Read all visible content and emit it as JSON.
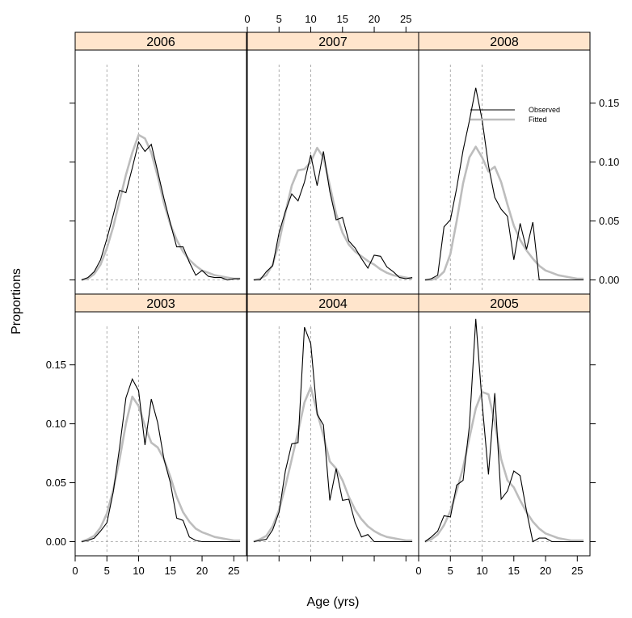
{
  "chart_data": {
    "type": "line",
    "xlabel": "Age (yrs)",
    "ylabel": "Proportions",
    "xlim": [
      0,
      27
    ],
    "ylim": [
      -0.012,
      0.195
    ],
    "x_ticks": [
      0,
      5,
      10,
      15,
      20,
      25
    ],
    "x_tick_labels": [
      "0",
      "5",
      "10",
      "15",
      "20",
      "25"
    ],
    "y_ticks": [
      0.0,
      0.05,
      0.1,
      0.15
    ],
    "y_tick_labels": [
      "0.00",
      "0.05",
      "0.10",
      "0.15"
    ],
    "reference_lines_x": [
      5,
      10
    ],
    "colors": {
      "strip_fill": "#ffe5cc",
      "observed": "#000000",
      "fitted": "#bdbdbd",
      "reference": "#999999"
    },
    "legend": {
      "placement": "top-right of 2008 panel",
      "entries": [
        {
          "label": "Observed",
          "series": "observed"
        },
        {
          "label": "Fitted",
          "series": "fitted"
        }
      ]
    },
    "panels": [
      {
        "year": "2006",
        "observed": [
          [
            1,
            0.0
          ],
          [
            2,
            0.002
          ],
          [
            3,
            0.007
          ],
          [
            4,
            0.017
          ],
          [
            5,
            0.035
          ],
          [
            6,
            0.055
          ],
          [
            7,
            0.076
          ],
          [
            8,
            0.074
          ],
          [
            9,
            0.095
          ],
          [
            10,
            0.117
          ],
          [
            11,
            0.109
          ],
          [
            12,
            0.115
          ],
          [
            13,
            0.092
          ],
          [
            14,
            0.069
          ],
          [
            15,
            0.048
          ],
          [
            16,
            0.028
          ],
          [
            17,
            0.028
          ],
          [
            18,
            0.015
          ],
          [
            19,
            0.004
          ],
          [
            20,
            0.008
          ],
          [
            21,
            0.003
          ],
          [
            22,
            0.002
          ],
          [
            23,
            0.002
          ],
          [
            24,
            0.0
          ],
          [
            25,
            0.001
          ],
          [
            26,
            0.001
          ]
        ],
        "fitted": [
          [
            1,
            0.0
          ],
          [
            2,
            0.001
          ],
          [
            3,
            0.005
          ],
          [
            4,
            0.013
          ],
          [
            5,
            0.027
          ],
          [
            6,
            0.045
          ],
          [
            7,
            0.067
          ],
          [
            8,
            0.089
          ],
          [
            9,
            0.108
          ],
          [
            10,
            0.123
          ],
          [
            11,
            0.12
          ],
          [
            12,
            0.108
          ],
          [
            13,
            0.088
          ],
          [
            14,
            0.065
          ],
          [
            15,
            0.047
          ],
          [
            16,
            0.034
          ],
          [
            17,
            0.024
          ],
          [
            18,
            0.017
          ],
          [
            19,
            0.012
          ],
          [
            20,
            0.008
          ],
          [
            21,
            0.006
          ],
          [
            22,
            0.004
          ],
          [
            23,
            0.003
          ],
          [
            24,
            0.002
          ],
          [
            25,
            0.001
          ],
          [
            26,
            0.001
          ]
        ]
      },
      {
        "year": "2007",
        "observed": [
          [
            1,
            0.0
          ],
          [
            2,
            0.0
          ],
          [
            3,
            0.007
          ],
          [
            4,
            0.012
          ],
          [
            5,
            0.04
          ],
          [
            6,
            0.058
          ],
          [
            7,
            0.073
          ],
          [
            8,
            0.067
          ],
          [
            9,
            0.083
          ],
          [
            10,
            0.106
          ],
          [
            11,
            0.08
          ],
          [
            12,
            0.109
          ],
          [
            13,
            0.075
          ],
          [
            14,
            0.051
          ],
          [
            15,
            0.053
          ],
          [
            16,
            0.033
          ],
          [
            17,
            0.027
          ],
          [
            18,
            0.018
          ],
          [
            19,
            0.01
          ],
          [
            20,
            0.021
          ],
          [
            21,
            0.02
          ],
          [
            22,
            0.011
          ],
          [
            23,
            0.007
          ],
          [
            24,
            0.002
          ],
          [
            25,
            0.001
          ],
          [
            26,
            0.002
          ]
        ],
        "fitted": [
          [
            1,
            0.0
          ],
          [
            2,
            0.001
          ],
          [
            3,
            0.004
          ],
          [
            4,
            0.013
          ],
          [
            5,
            0.032
          ],
          [
            6,
            0.057
          ],
          [
            7,
            0.08
          ],
          [
            8,
            0.093
          ],
          [
            9,
            0.094
          ],
          [
            10,
            0.1
          ],
          [
            11,
            0.112
          ],
          [
            12,
            0.104
          ],
          [
            13,
            0.08
          ],
          [
            14,
            0.056
          ],
          [
            15,
            0.04
          ],
          [
            16,
            0.03
          ],
          [
            17,
            0.024
          ],
          [
            18,
            0.02
          ],
          [
            19,
            0.016
          ],
          [
            20,
            0.013
          ],
          [
            21,
            0.009
          ],
          [
            22,
            0.006
          ],
          [
            23,
            0.004
          ],
          [
            24,
            0.003
          ],
          [
            25,
            0.002
          ],
          [
            26,
            0.001
          ]
        ]
      },
      {
        "year": "2008",
        "observed": [
          [
            1,
            0.0
          ],
          [
            2,
            0.001
          ],
          [
            3,
            0.004
          ],
          [
            4,
            0.045
          ],
          [
            5,
            0.051
          ],
          [
            6,
            0.078
          ],
          [
            7,
            0.11
          ],
          [
            8,
            0.135
          ],
          [
            9,
            0.163
          ],
          [
            10,
            0.136
          ],
          [
            11,
            0.097
          ],
          [
            12,
            0.07
          ],
          [
            13,
            0.06
          ],
          [
            14,
            0.054
          ],
          [
            15,
            0.017
          ],
          [
            16,
            0.048
          ],
          [
            17,
            0.026
          ],
          [
            18,
            0.049
          ],
          [
            19,
            0.0
          ],
          [
            20,
            0.0
          ],
          [
            21,
            0.0
          ],
          [
            22,
            0.0
          ],
          [
            23,
            0.0
          ],
          [
            24,
            0.0
          ],
          [
            25,
            0.0
          ],
          [
            26,
            0.0
          ]
        ],
        "fitted": [
          [
            1,
            0.0
          ],
          [
            2,
            0.0
          ],
          [
            3,
            0.002
          ],
          [
            4,
            0.007
          ],
          [
            5,
            0.022
          ],
          [
            6,
            0.05
          ],
          [
            7,
            0.082
          ],
          [
            8,
            0.104
          ],
          [
            9,
            0.113
          ],
          [
            10,
            0.104
          ],
          [
            11,
            0.092
          ],
          [
            12,
            0.096
          ],
          [
            13,
            0.083
          ],
          [
            14,
            0.064
          ],
          [
            15,
            0.046
          ],
          [
            16,
            0.034
          ],
          [
            17,
            0.025
          ],
          [
            18,
            0.018
          ],
          [
            19,
            0.012
          ],
          [
            20,
            0.008
          ],
          [
            21,
            0.006
          ],
          [
            22,
            0.004
          ],
          [
            23,
            0.003
          ],
          [
            24,
            0.002
          ],
          [
            25,
            0.001
          ],
          [
            26,
            0.001
          ]
        ]
      },
      {
        "year": "2003",
        "observed": [
          [
            1,
            0.0
          ],
          [
            2,
            0.001
          ],
          [
            3,
            0.003
          ],
          [
            4,
            0.009
          ],
          [
            5,
            0.016
          ],
          [
            6,
            0.042
          ],
          [
            7,
            0.08
          ],
          [
            8,
            0.122
          ],
          [
            9,
            0.138
          ],
          [
            10,
            0.128
          ],
          [
            11,
            0.082
          ],
          [
            12,
            0.121
          ],
          [
            13,
            0.101
          ],
          [
            14,
            0.07
          ],
          [
            15,
            0.05
          ],
          [
            16,
            0.02
          ],
          [
            17,
            0.018
          ],
          [
            18,
            0.004
          ],
          [
            19,
            0.001
          ],
          [
            20,
            0.0
          ],
          [
            21,
            0.0
          ],
          [
            22,
            0.0
          ],
          [
            23,
            0.0
          ],
          [
            24,
            0.0
          ],
          [
            25,
            0.0
          ],
          [
            26,
            0.0
          ]
        ],
        "fitted": [
          [
            1,
            0.0
          ],
          [
            2,
            0.002
          ],
          [
            3,
            0.005
          ],
          [
            4,
            0.012
          ],
          [
            5,
            0.024
          ],
          [
            6,
            0.044
          ],
          [
            7,
            0.07
          ],
          [
            8,
            0.1
          ],
          [
            9,
            0.123
          ],
          [
            10,
            0.115
          ],
          [
            11,
            0.098
          ],
          [
            12,
            0.084
          ],
          [
            13,
            0.08
          ],
          [
            14,
            0.07
          ],
          [
            15,
            0.055
          ],
          [
            16,
            0.038
          ],
          [
            17,
            0.025
          ],
          [
            18,
            0.017
          ],
          [
            19,
            0.011
          ],
          [
            20,
            0.008
          ],
          [
            21,
            0.006
          ],
          [
            22,
            0.004
          ],
          [
            23,
            0.003
          ],
          [
            24,
            0.002
          ],
          [
            25,
            0.001
          ],
          [
            26,
            0.001
          ]
        ]
      },
      {
        "year": "2004",
        "observed": [
          [
            1,
            0.0
          ],
          [
            2,
            0.001
          ],
          [
            3,
            0.002
          ],
          [
            4,
            0.01
          ],
          [
            5,
            0.025
          ],
          [
            6,
            0.06
          ],
          [
            7,
            0.083
          ],
          [
            8,
            0.084
          ],
          [
            9,
            0.182
          ],
          [
            10,
            0.168
          ],
          [
            11,
            0.108
          ],
          [
            12,
            0.099
          ],
          [
            13,
            0.035
          ],
          [
            14,
            0.062
          ],
          [
            15,
            0.035
          ],
          [
            16,
            0.036
          ],
          [
            17,
            0.016
          ],
          [
            18,
            0.004
          ],
          [
            19,
            0.006
          ],
          [
            20,
            0.0
          ],
          [
            21,
            0.0
          ],
          [
            22,
            0.0
          ],
          [
            23,
            0.0
          ],
          [
            24,
            0.0
          ],
          [
            25,
            0.0
          ],
          [
            26,
            0.0
          ]
        ],
        "fitted": [
          [
            1,
            0.0
          ],
          [
            2,
            0.002
          ],
          [
            3,
            0.005
          ],
          [
            4,
            0.013
          ],
          [
            5,
            0.027
          ],
          [
            6,
            0.047
          ],
          [
            7,
            0.07
          ],
          [
            8,
            0.093
          ],
          [
            9,
            0.118
          ],
          [
            10,
            0.131
          ],
          [
            11,
            0.11
          ],
          [
            12,
            0.09
          ],
          [
            13,
            0.068
          ],
          [
            14,
            0.062
          ],
          [
            15,
            0.052
          ],
          [
            16,
            0.038
          ],
          [
            17,
            0.027
          ],
          [
            18,
            0.019
          ],
          [
            19,
            0.013
          ],
          [
            20,
            0.009
          ],
          [
            21,
            0.006
          ],
          [
            22,
            0.004
          ],
          [
            23,
            0.003
          ],
          [
            24,
            0.002
          ],
          [
            25,
            0.001
          ],
          [
            26,
            0.001
          ]
        ]
      },
      {
        "year": "2005",
        "observed": [
          [
            1,
            0.0
          ],
          [
            2,
            0.004
          ],
          [
            3,
            0.009
          ],
          [
            4,
            0.022
          ],
          [
            5,
            0.021
          ],
          [
            6,
            0.048
          ],
          [
            7,
            0.052
          ],
          [
            8,
            0.098
          ],
          [
            9,
            0.189
          ],
          [
            10,
            0.118
          ],
          [
            11,
            0.057
          ],
          [
            12,
            0.126
          ],
          [
            13,
            0.036
          ],
          [
            14,
            0.043
          ],
          [
            15,
            0.06
          ],
          [
            16,
            0.056
          ],
          [
            17,
            0.026
          ],
          [
            18,
            0.0
          ],
          [
            19,
            0.003
          ],
          [
            20,
            0.003
          ],
          [
            21,
            0.0
          ],
          [
            22,
            0.0
          ],
          [
            23,
            0.0
          ],
          [
            24,
            0.0
          ],
          [
            25,
            0.0
          ],
          [
            26,
            0.0
          ]
        ],
        "fitted": [
          [
            1,
            0.0
          ],
          [
            2,
            0.002
          ],
          [
            3,
            0.006
          ],
          [
            4,
            0.014
          ],
          [
            5,
            0.026
          ],
          [
            6,
            0.043
          ],
          [
            7,
            0.063
          ],
          [
            8,
            0.088
          ],
          [
            9,
            0.113
          ],
          [
            10,
            0.127
          ],
          [
            11,
            0.125
          ],
          [
            12,
            0.101
          ],
          [
            13,
            0.07
          ],
          [
            14,
            0.052
          ],
          [
            15,
            0.046
          ],
          [
            16,
            0.035
          ],
          [
            17,
            0.025
          ],
          [
            18,
            0.017
          ],
          [
            19,
            0.011
          ],
          [
            20,
            0.007
          ],
          [
            21,
            0.005
          ],
          [
            22,
            0.003
          ],
          [
            23,
            0.002
          ],
          [
            24,
            0.001
          ],
          [
            25,
            0.001
          ],
          [
            26,
            0.001
          ]
        ]
      }
    ]
  }
}
